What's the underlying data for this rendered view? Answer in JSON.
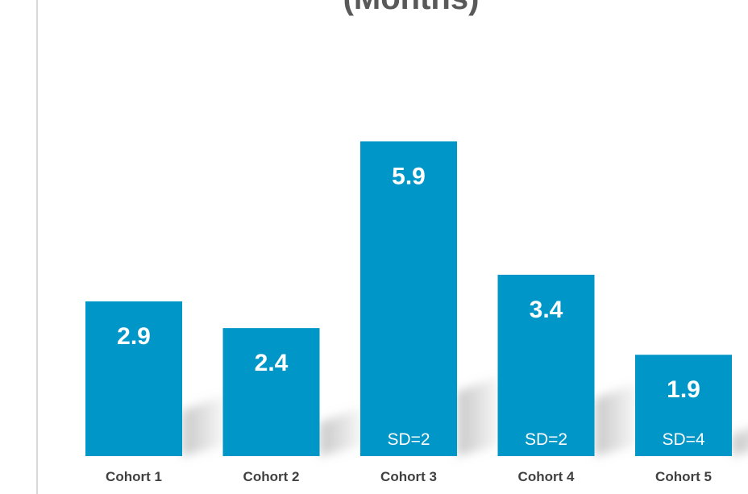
{
  "chart_data": {
    "type": "bar",
    "title": "(Months)",
    "categories": [
      "Cohort 1",
      "Cohort 2",
      "Cohort 3",
      "Cohort 4",
      "Cohort 5"
    ],
    "values": [
      2.9,
      2.4,
      5.9,
      3.4,
      1.9
    ],
    "value_labels": [
      "2.9",
      "2.4",
      "5.9",
      "3.4",
      "1.9"
    ],
    "sd_labels": [
      "",
      "",
      "SD=2",
      "SD=2",
      "SD=4"
    ],
    "xlabel": "",
    "ylabel": "",
    "ylim": [
      0,
      8
    ],
    "grid": false,
    "legend": "none"
  },
  "colors": {
    "bar": "#0096c8",
    "bar_label": "#ffffff",
    "category_label": "#404040",
    "title": "#595959"
  }
}
